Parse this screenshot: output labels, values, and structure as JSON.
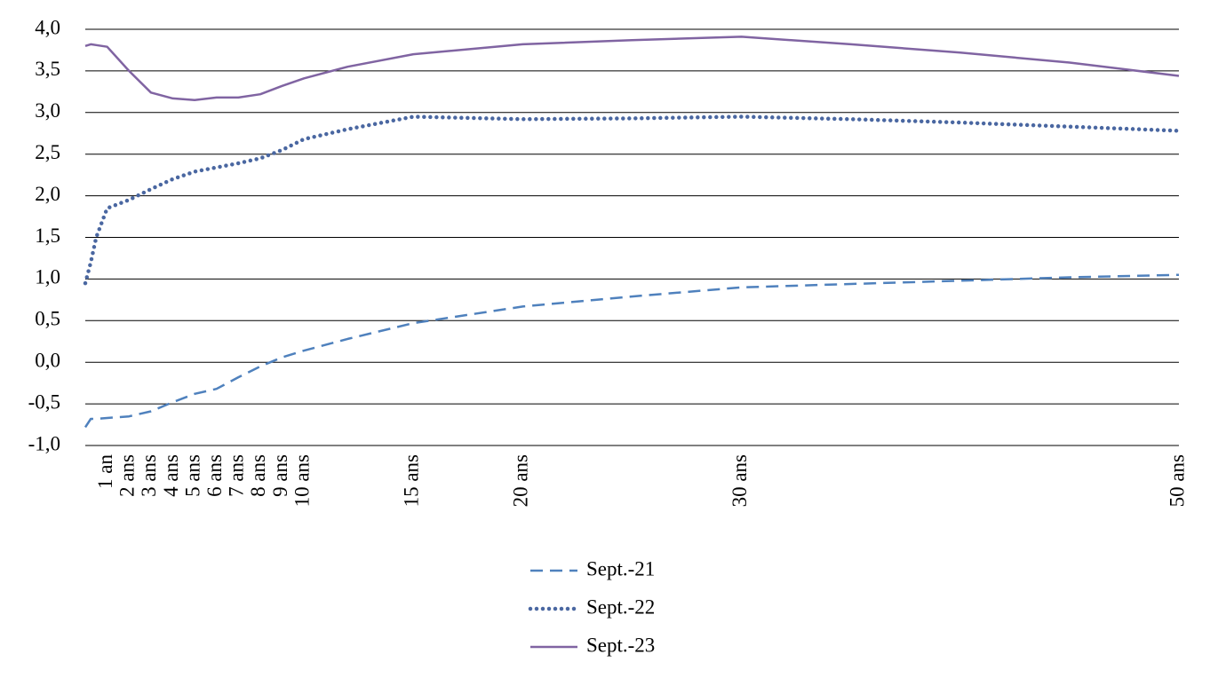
{
  "chart_data": {
    "type": "line",
    "x": [
      0,
      0.25,
      0.5,
      1,
      2,
      3,
      4,
      5,
      6,
      7,
      8,
      9,
      10,
      12,
      15,
      20,
      25,
      30,
      35,
      40,
      45,
      50
    ],
    "xlim": [
      0,
      50
    ],
    "xticks": [
      {
        "value": 1,
        "label": "1 an"
      },
      {
        "value": 2,
        "label": "2 ans"
      },
      {
        "value": 3,
        "label": "3 ans"
      },
      {
        "value": 4,
        "label": "4 ans"
      },
      {
        "value": 5,
        "label": "5 ans"
      },
      {
        "value": 6,
        "label": "6 ans"
      },
      {
        "value": 7,
        "label": "7 ans"
      },
      {
        "value": 8,
        "label": "8 ans"
      },
      {
        "value": 9,
        "label": "9 ans"
      },
      {
        "value": 10,
        "label": "10 ans"
      },
      {
        "value": 15,
        "label": "15 ans"
      },
      {
        "value": 20,
        "label": "20 ans"
      },
      {
        "value": 30,
        "label": "30 ans"
      },
      {
        "value": 50,
        "label": "50 ans"
      }
    ],
    "ylim": [
      -1,
      4
    ],
    "yticks": [
      {
        "value": -1,
        "label": "-1,0"
      },
      {
        "value": -0.5,
        "label": "-0,5"
      },
      {
        "value": 0,
        "label": "0,0"
      },
      {
        "value": 0.5,
        "label": "0,5"
      },
      {
        "value": 1,
        "label": "1,0"
      },
      {
        "value": 1.5,
        "label": "1,5"
      },
      {
        "value": 2,
        "label": "2,0"
      },
      {
        "value": 2.5,
        "label": "2,5"
      },
      {
        "value": 3,
        "label": "3,0"
      },
      {
        "value": 3.5,
        "label": "3,5"
      },
      {
        "value": 4,
        "label": "4,0"
      }
    ],
    "grid": true,
    "legend": "bottom",
    "series": [
      {
        "name": "Sept.-21",
        "color": "#4f81bd",
        "style": "dashed",
        "values": [
          -0.78,
          -0.68,
          -0.68,
          -0.67,
          -0.65,
          -0.59,
          -0.48,
          -0.38,
          -0.32,
          -0.18,
          -0.05,
          0.06,
          0.14,
          0.28,
          0.47,
          0.67,
          0.79,
          0.9,
          0.94,
          0.98,
          1.02,
          1.05
        ]
      },
      {
        "name": "Sept.-22",
        "color": "#4a67a1",
        "style": "dotted",
        "values": [
          0.95,
          1.2,
          1.5,
          1.85,
          1.95,
          2.08,
          2.2,
          2.29,
          2.34,
          2.39,
          2.45,
          2.55,
          2.68,
          2.8,
          2.95,
          2.92,
          2.93,
          2.95,
          2.92,
          2.88,
          2.83,
          2.78
        ]
      },
      {
        "name": "Sept.-23",
        "color": "#8064a2",
        "style": "solid",
        "values": [
          3.8,
          3.82,
          3.81,
          3.79,
          3.5,
          3.24,
          3.17,
          3.15,
          3.18,
          3.18,
          3.22,
          3.32,
          3.41,
          3.55,
          3.7,
          3.82,
          3.87,
          3.91,
          3.82,
          3.72,
          3.6,
          3.44
        ]
      }
    ]
  }
}
